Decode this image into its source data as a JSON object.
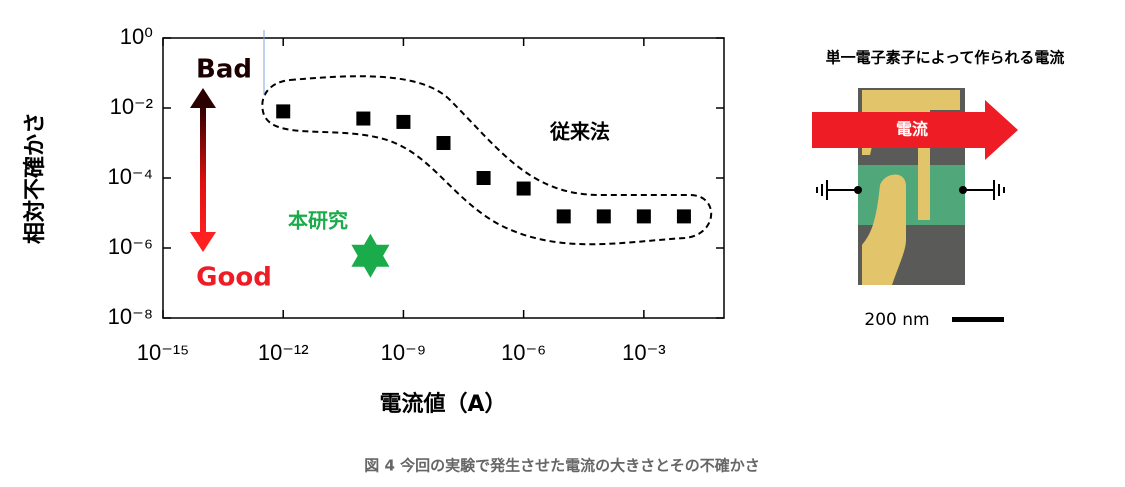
{
  "chart_data": {
    "type": "scatter",
    "ylabel": "相対不確かさ",
    "xlabel": "電流値（A）",
    "xlog": true,
    "ylog": true,
    "xlim": [
      1e-15,
      0.1
    ],
    "ylim": [
      1e-08,
      1
    ],
    "xticks": [
      {
        "value": 1e-15,
        "label": "10⁻¹⁵"
      },
      {
        "value": 1e-12,
        "label": "10⁻¹²"
      },
      {
        "value": 1e-09,
        "label": "10⁻⁹"
      },
      {
        "value": 1e-06,
        "label": "10⁻⁶"
      },
      {
        "value": 0.001,
        "label": "10⁻³"
      }
    ],
    "yticks": [
      {
        "value": 1,
        "label": "10⁰"
      },
      {
        "value": 0.01,
        "label": "10⁻²"
      },
      {
        "value": 0.0001,
        "label": "10⁻⁴"
      },
      {
        "value": 1e-06,
        "label": "10⁻⁶"
      },
      {
        "value": 1e-08,
        "label": "10⁻⁸"
      }
    ],
    "annotations": [
      "Bad",
      "Good"
    ],
    "series": [
      {
        "name": "従来法",
        "color": "#000000",
        "marker": "square",
        "x": [
          1e-12,
          1e-10,
          1e-09,
          1e-08,
          1e-07,
          1e-06,
          1e-05,
          0.0001,
          0.001,
          0.01
        ],
        "values": [
          0.008,
          0.005,
          0.004,
          0.001,
          0.0001,
          5e-05,
          8e-06,
          8e-06,
          8e-06,
          8e-06
        ]
      },
      {
        "name": "本研究",
        "color": "#1aab4a",
        "marker": "star",
        "x": [
          1.5e-10
        ],
        "values": [
          6e-07
        ]
      }
    ]
  },
  "panel": {
    "title": "単一電子素子によって作られる電流",
    "arrow_label": "電流",
    "scale_bar": "200 nm"
  },
  "caption": "図 4 今回の実験で発生させた電流の大きさとその不確かさ"
}
